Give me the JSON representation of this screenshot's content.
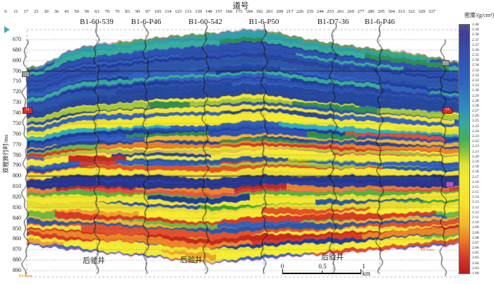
{
  "chart_data": {
    "type": "heatmap",
    "description": "Seismic density inversion profile: colored layered section with well logs overlaid",
    "xlabel": "道号",
    "ylabel": "双程旅行时/ms",
    "x_tick_labels": [
      6,
      11,
      17,
      23,
      30,
      36,
      43,
      50,
      56,
      63,
      70,
      76,
      83,
      90,
      97,
      105,
      114,
      123,
      131,
      139,
      148,
      157,
      166,
      175,
      184,
      192,
      201,
      209,
      217,
      226,
      235,
      244,
      253,
      261,
      269,
      277,
      286,
      295,
      304,
      313,
      321,
      329,
      337
    ],
    "y_tick_labels": [
      670,
      680,
      690,
      700,
      710,
      720,
      730,
      740,
      750,
      760,
      770,
      780,
      790,
      800,
      810,
      820,
      830,
      840,
      850,
      860,
      870,
      880,
      890
    ],
    "axis_ranges": {
      "x_trace": [
        6,
        337
      ],
      "y_ms": [
        670,
        890
      ],
      "density_g_cm3": [
        2.03,
        2.4
      ]
    },
    "grid": {
      "horizontal_dotted_every_ms": 10,
      "bold_lines_ms": [
        700,
        800
      ]
    },
    "legend_position": "right colorbar",
    "colorbar": {
      "title": "密度/(g/cm³)",
      "tick_labels": [
        "2.40",
        "2.39",
        "2.38",
        "2.37",
        "2.37",
        "2.36",
        "2.35",
        "2.34",
        "2.34",
        "2.33",
        "2.32",
        "2.31",
        "2.31",
        "2.30",
        "2.29",
        "2.28",
        "2.28",
        "2.27",
        "2.26",
        "2.25",
        "2.25",
        "2.24",
        "2.23",
        "2.22",
        "2.21",
        "2.21",
        "2.20",
        "2.19",
        "2.18",
        "2.18",
        "2.17",
        "2.16",
        "2.15",
        "2.15",
        "2.14",
        "2.13",
        "2.12",
        "2.12",
        "2.11",
        "2.10",
        "2.09",
        "2.09",
        "2.08",
        "2.07",
        "2.06",
        "2.05",
        "2.05",
        "2.04",
        "2.03",
        "1.00"
      ],
      "gradient_colors_top_to_bottom": [
        "#3c3f97",
        "#3350b2",
        "#2c62bd",
        "#2e86c0",
        "#35ab9b",
        "#43ae54",
        "#8cc23c",
        "#dfe334",
        "#f4ea2e",
        "#f6e22b",
        "#f3b82a",
        "#ee8126",
        "#e04f25",
        "#d32f24",
        "#b52018"
      ]
    },
    "wells": [
      "B1-60-539",
      "B1-6-P46",
      "B1-60-542",
      "B1-6-P50",
      "B1-D7-36",
      "B1-6-P46"
    ],
    "posterior_well_labels": [
      "后验井",
      "后验井",
      "后验井"
    ],
    "horizon_labels": [
      "PZ base",
      "PZ base"
    ],
    "well_log_marker_labels": [
      "S1",
      "S1"
    ],
    "scale_bar": {
      "tick_labels": [
        "0",
        "0.5",
        "1 km"
      ],
      "length_km": 1
    }
  }
}
